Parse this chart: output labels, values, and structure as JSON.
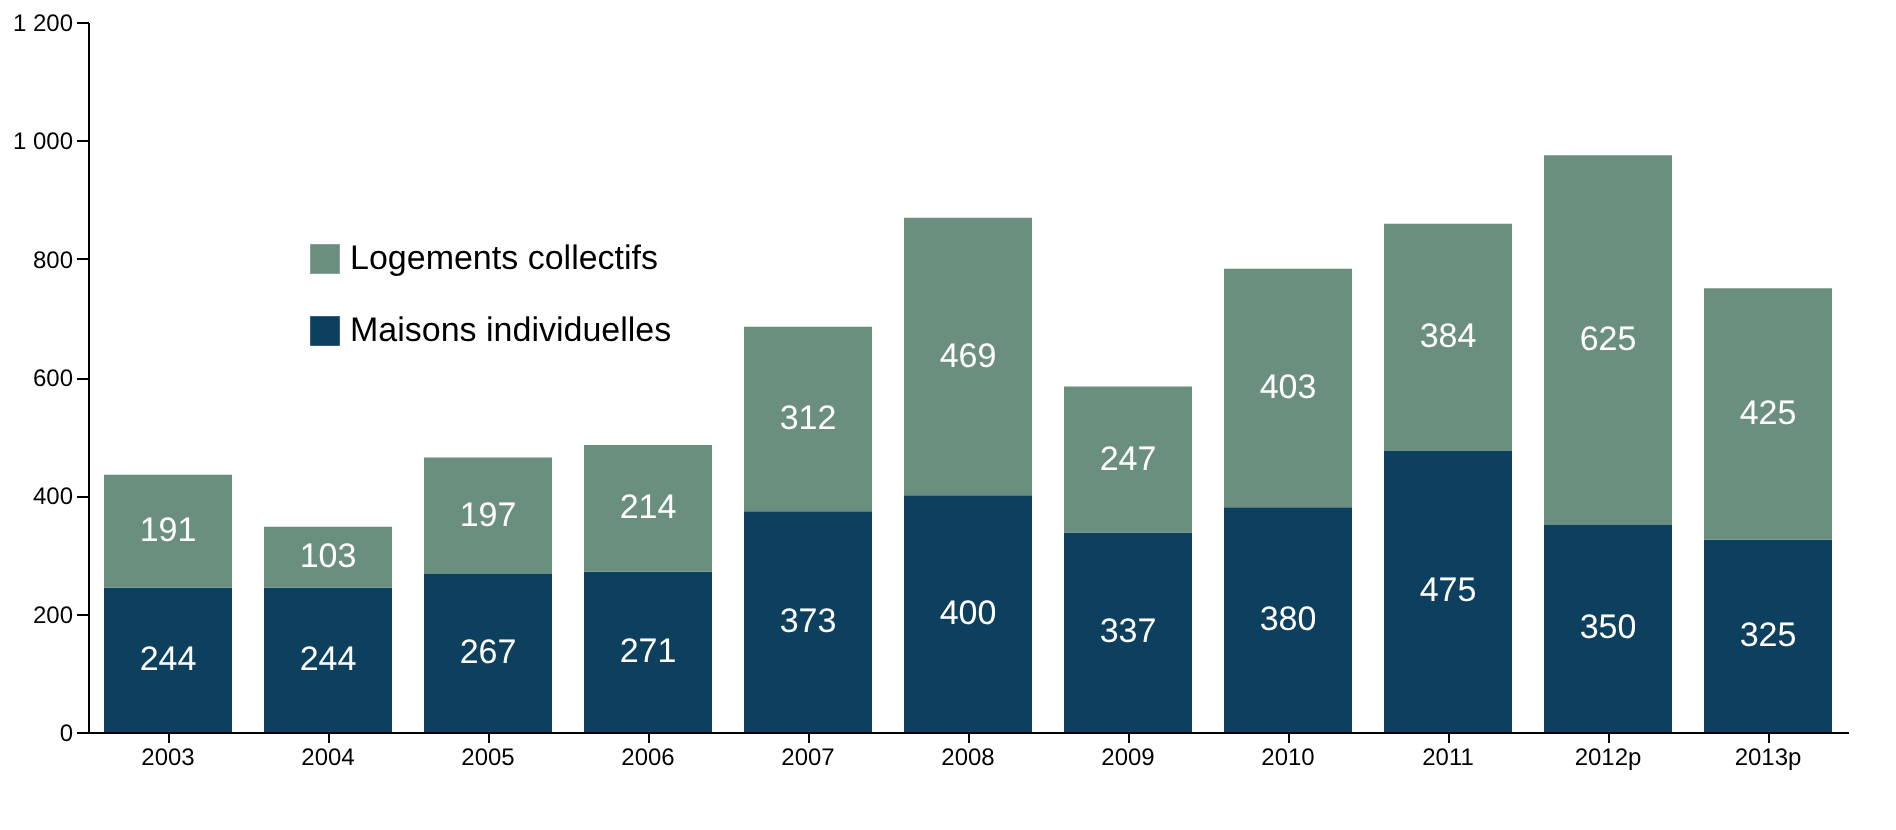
{
  "chart_data": {
    "type": "bar",
    "stacked": true,
    "categories": [
      "2003",
      "2004",
      "2005",
      "2006",
      "2007",
      "2008",
      "2009",
      "2010",
      "2011",
      "2012p",
      "2013p"
    ],
    "series": [
      {
        "name": "Maisons individuelles",
        "color": "#0d3f5f",
        "values": [
          244,
          244,
          267,
          271,
          373,
          400,
          337,
          380,
          475,
          350,
          325
        ]
      },
      {
        "name": "Logements collectifs",
        "color": "#6b8f7e",
        "values": [
          191,
          103,
          197,
          214,
          312,
          469,
          247,
          403,
          384,
          625,
          425
        ]
      }
    ],
    "ylim": [
      0,
      1200
    ],
    "yticks": [
      0,
      200,
      400,
      600,
      800,
      {
        "value": 1000,
        "label": "1 000"
      },
      {
        "value": 1200,
        "label": "1 200"
      }
    ],
    "data_labels": true,
    "grid": false,
    "legend": "top left"
  }
}
